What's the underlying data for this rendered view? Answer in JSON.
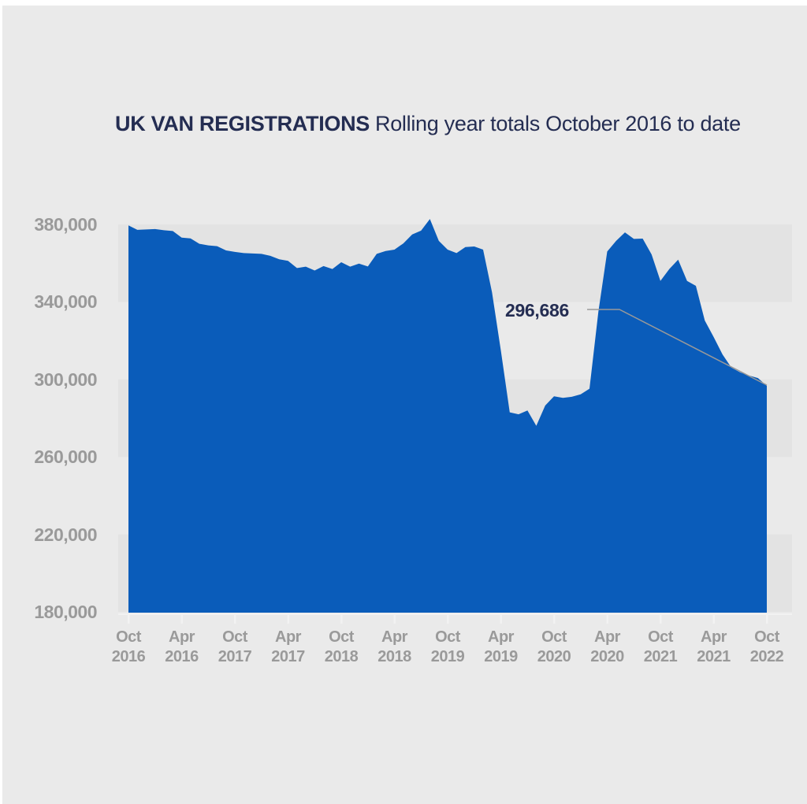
{
  "title": {
    "bold": "UK VAN REGISTRATIONS",
    "regular": "Rolling year totals October 2016 to date"
  },
  "colors": {
    "area_blue": "#0a5cba",
    "title_navy": "#242d52",
    "axis_gray": "#9a9a9a",
    "band_dark": "#e3e3e3",
    "page_bg": "#eaeaea",
    "leader_line": "#999999",
    "tick_light": "#f2f2f2"
  },
  "chart_data": {
    "type": "area",
    "title": "UK VAN REGISTRATIONS Rolling year totals October 2016 to date",
    "ylabel": "",
    "xlabel": "",
    "ylim": [
      180000,
      380000
    ],
    "grid": "banded-horizontal",
    "legend": "none",
    "x_range": "monthly rolling-year totals, Oct 2016 to Oct 2022",
    "y_axis": {
      "ticks": [
        {
          "label": "380,000",
          "value": 380000
        },
        {
          "label": "340,000",
          "value": 340000
        },
        {
          "label": "300,000",
          "value": 300000
        },
        {
          "label": "260,000",
          "value": 260000
        },
        {
          "label": "220,000",
          "value": 220000
        },
        {
          "label": "180,000",
          "value": 180000
        }
      ]
    },
    "x_axis": {
      "tick_every_n_points": 6,
      "ticks": [
        {
          "month": "Oct",
          "year": "2016"
        },
        {
          "month": "Apr",
          "year": "2016"
        },
        {
          "month": "Oct",
          "year": "2017"
        },
        {
          "month": "Apr",
          "year": "2017"
        },
        {
          "month": "Oct",
          "year": "2018"
        },
        {
          "month": "Apr",
          "year": "2018"
        },
        {
          "month": "Oct",
          "year": "2019"
        },
        {
          "month": "Apr",
          "year": "2019"
        },
        {
          "month": "Oct",
          "year": "2020"
        },
        {
          "month": "Apr",
          "year": "2020"
        },
        {
          "month": "Oct",
          "year": "2021"
        },
        {
          "month": "Apr",
          "year": "2021"
        },
        {
          "month": "Oct",
          "year": "2022"
        }
      ]
    },
    "values": [
      379500,
      377200,
      377400,
      377600,
      377000,
      376600,
      373200,
      372800,
      370000,
      369200,
      368800,
      366600,
      365800,
      365200,
      365000,
      364800,
      363800,
      362000,
      361200,
      357500,
      358200,
      356200,
      358500,
      357000,
      360500,
      358200,
      359800,
      358300,
      364800,
      366300,
      367000,
      370200,
      374800,
      376800,
      382800,
      371500,
      367000,
      365200,
      368300,
      368600,
      367000,
      345000,
      315000,
      283000,
      282000,
      284000,
      276000,
      286500,
      291300,
      290500,
      291000,
      292300,
      295200,
      335000,
      366000,
      371500,
      375900,
      372500,
      372700,
      364500,
      350800,
      357000,
      361800,
      350800,
      348300,
      330400,
      321900,
      312900,
      306100,
      303600,
      302000,
      300700,
      296686
    ],
    "annotation": {
      "text": "296,686",
      "value": 296686,
      "points_to": "last data point (Oct 2022)"
    }
  }
}
